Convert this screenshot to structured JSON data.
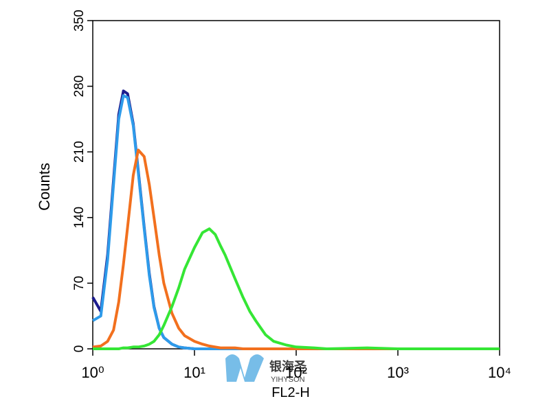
{
  "chart_data": {
    "type": "line",
    "xlabel": "FL2-H",
    "ylabel": "Counts",
    "xscale": "log",
    "x": [
      1,
      1.2,
      1.4,
      1.6,
      1.8,
      2,
      2.2,
      2.5,
      2.8,
      3.2,
      3.6,
      4,
      4.5,
      5,
      6,
      7,
      8,
      10,
      12,
      14,
      16,
      18,
      20,
      25,
      30,
      35,
      40,
      50,
      60,
      80,
      100,
      150,
      200,
      500,
      1000,
      10000
    ],
    "series": [
      {
        "color": "#1c1c8e",
        "values": [
          55,
          40,
          100,
          180,
          250,
          275,
          272,
          240,
          190,
          130,
          80,
          45,
          22,
          12,
          5,
          2,
          1,
          0,
          0,
          0,
          0,
          0,
          0,
          0,
          0,
          0,
          0,
          0,
          0,
          0,
          0,
          0,
          0,
          0,
          0,
          0
        ]
      },
      {
        "color": "#2e9bea",
        "values": [
          30,
          35,
          95,
          175,
          245,
          270,
          268,
          238,
          188,
          128,
          78,
          44,
          22,
          12,
          5,
          2,
          1,
          0,
          0,
          0,
          0,
          0,
          0,
          0,
          0,
          0,
          0,
          0,
          0,
          0,
          0,
          0,
          0,
          0,
          0,
          0
        ]
      },
      {
        "color": "#f2701e",
        "values": [
          2,
          3,
          8,
          20,
          50,
          90,
          130,
          185,
          212,
          205,
          175,
          140,
          100,
          70,
          38,
          22,
          14,
          8,
          5,
          3,
          2,
          1,
          1,
          1,
          0,
          0,
          0,
          0,
          0,
          0,
          0,
          0,
          0,
          0,
          0,
          0
        ]
      },
      {
        "color": "#35e635",
        "values": [
          0,
          0,
          0,
          0,
          0,
          1,
          1,
          2,
          2,
          3,
          5,
          8,
          15,
          25,
          45,
          65,
          85,
          108,
          124,
          128,
          122,
          110,
          100,
          75,
          55,
          40,
          30,
          15,
          8,
          4,
          2,
          1,
          0,
          1,
          0,
          0
        ]
      }
    ],
    "xlim": [
      1,
      10000
    ],
    "xticks": [
      {
        "value": 1,
        "label": "10⁰"
      },
      {
        "value": 10,
        "label": "10¹"
      },
      {
        "value": 100,
        "label": "10²"
      },
      {
        "value": 1000,
        "label": "10³"
      },
      {
        "value": 10000,
        "label": "10⁴"
      }
    ],
    "ylim": [
      0,
      350
    ],
    "yticks": [
      0,
      70,
      140,
      210,
      280,
      350
    ],
    "watermark": {
      "text": "银海圣",
      "sub": "YIHYSON"
    }
  }
}
